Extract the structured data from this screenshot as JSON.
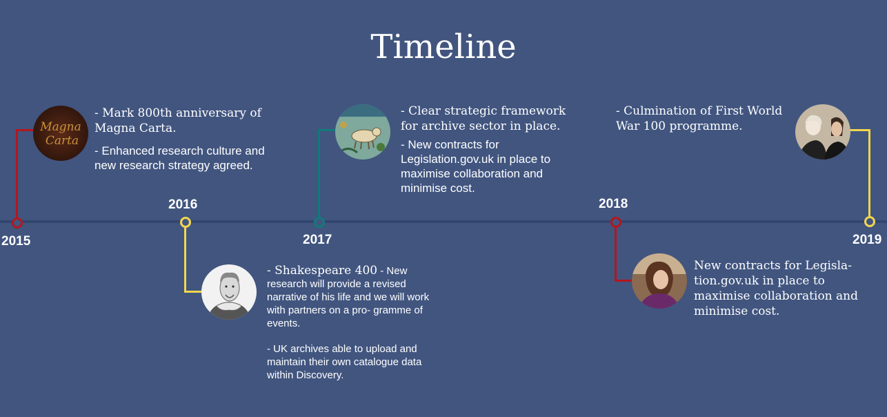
{
  "page": {
    "title": "Timeline"
  },
  "colors": {
    "background": "#41557f",
    "axis": "#324670",
    "red": "#b5161e",
    "yellow": "#f3d64e",
    "teal": "#127a78",
    "text": "#ffffff"
  },
  "entries": [
    {
      "year": "2015",
      "image_label": "Magna Carta",
      "paragraphs": [
        "- Mark 800th anniversary of Magna Carta.",
        "- Enhanced research culture and new research strategy agreed."
      ]
    },
    {
      "year": "2016",
      "lead": "- Shakespeare 400",
      "paragraphs": [
        " - New research will provide a revised narrative of his life and we will work with partners on a pro- gramme of events.",
        "- UK archives able to upload and maintain their own catalogue data within Discovery."
      ]
    },
    {
      "year": "2017",
      "paragraphs": [
        "- Clear strategic framework for archive sector in place.",
        "- New contracts for Legislation.gov.uk in place to maximise collaboration and minimise cost."
      ]
    },
    {
      "year": "2018",
      "paragraphs": [
        "New contracts for Legisla- tion.gov.uk in place to maximise collaboration and minimise cost."
      ]
    },
    {
      "year": "2019",
      "paragraphs": [
        "- Culmination of First World War 100 programme."
      ]
    }
  ]
}
